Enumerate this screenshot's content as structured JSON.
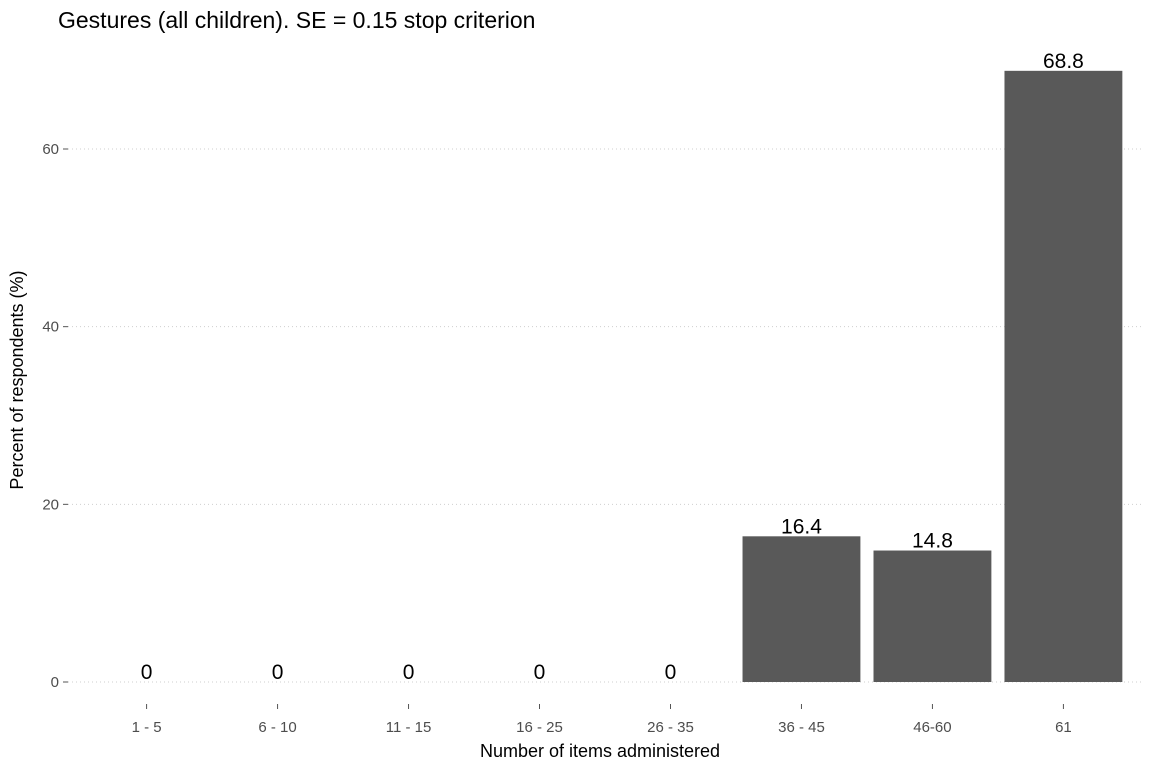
{
  "chart_data": {
    "type": "bar",
    "title": "Gestures (all children). SE = 0.15 stop criterion",
    "xlabel": "Number of items administered",
    "ylabel": "Percent of respondents (%)",
    "categories": [
      "1 - 5",
      "6 - 10",
      "11 - 15",
      "16 - 25",
      "26 - 35",
      "36 - 45",
      "46-60",
      "61"
    ],
    "values": [
      0,
      0,
      0,
      0,
      0,
      16.4,
      14.8,
      68.8
    ],
    "value_labels": [
      "0",
      "0",
      "0",
      "0",
      "0",
      "16.4",
      "14.8",
      "68.8"
    ],
    "ylim": [
      -2.5,
      70
    ],
    "yticks": [
      0,
      20,
      40,
      60
    ],
    "grid": "horizontal-dotted",
    "legend": "none",
    "bar_color": "#595959",
    "grid_color": "#cfcfcf"
  }
}
